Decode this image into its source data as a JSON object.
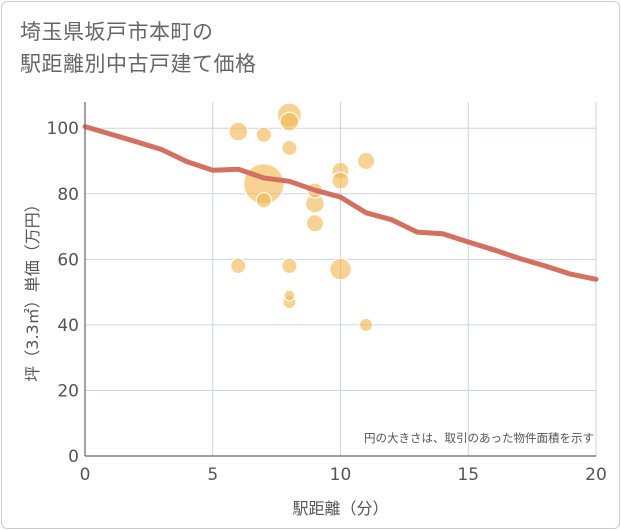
{
  "title_lines": [
    "埼玉県坂戸市本町の",
    "駅距離別中古戸建て価格"
  ],
  "chart_data": {
    "type": "scatter",
    "title": "埼玉県坂戸市本町の 駅距離別中古戸建て価格",
    "xlabel": "駅距離（分）",
    "ylabel": "坪（3.3㎡）単価（万円）",
    "xlim": [
      0,
      20
    ],
    "ylim": [
      0,
      108
    ],
    "xticks": [
      0,
      5,
      10,
      15,
      20
    ],
    "yticks": [
      0,
      20,
      40,
      60,
      80,
      100
    ],
    "grid": true,
    "note": "円の大きさは、取引のあった物件面積を示す",
    "colors": {
      "bubble_fill": "#f4b650",
      "bubble_stroke": "#ffffff",
      "trend_line": "#d4705f",
      "grid": "#c8d6e3",
      "axis": "#666666"
    },
    "scatter_points": [
      {
        "x": 6,
        "y": 99,
        "size": 3
      },
      {
        "x": 7,
        "y": 98,
        "size": 2
      },
      {
        "x": 8,
        "y": 104,
        "size": 5
      },
      {
        "x": 8,
        "y": 102,
        "size": 3
      },
      {
        "x": 8,
        "y": 94,
        "size": 2
      },
      {
        "x": 7,
        "y": 83,
        "size": 14
      },
      {
        "x": 7,
        "y": 78,
        "size": 2
      },
      {
        "x": 9,
        "y": 81,
        "size": 2
      },
      {
        "x": 9,
        "y": 77,
        "size": 3
      },
      {
        "x": 9,
        "y": 71,
        "size": 2.5
      },
      {
        "x": 10,
        "y": 87,
        "size": 2.5
      },
      {
        "x": 10,
        "y": 84,
        "size": 2.5
      },
      {
        "x": 11,
        "y": 90,
        "size": 2.5
      },
      {
        "x": 6,
        "y": 58,
        "size": 2
      },
      {
        "x": 8,
        "y": 58,
        "size": 2
      },
      {
        "x": 10,
        "y": 57,
        "size": 4
      },
      {
        "x": 8,
        "y": 49,
        "size": 1
      },
      {
        "x": 8,
        "y": 47,
        "size": 1.5
      },
      {
        "x": 11,
        "y": 40,
        "size": 1.5
      }
    ],
    "trend_line": {
      "x": [
        0,
        1,
        2,
        3,
        4,
        5,
        6,
        7,
        8,
        9,
        10,
        11,
        12,
        13,
        14,
        15,
        16,
        17,
        18,
        19,
        20
      ],
      "y": [
        100.5,
        98.2,
        95.9,
        93.5,
        89.8,
        87.2,
        87.5,
        84.8,
        83.8,
        81.1,
        79,
        74.2,
        72.1,
        68.3,
        67.8,
        65.3,
        62.9,
        60.3,
        58,
        55.5,
        53.9
      ]
    }
  }
}
